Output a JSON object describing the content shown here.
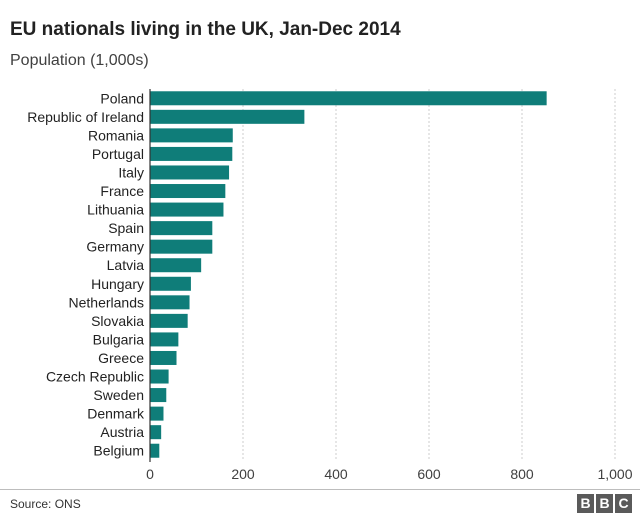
{
  "chart_data": {
    "type": "bar",
    "orientation": "horizontal",
    "title": "EU nationals living in the UK, Jan-Dec 2014",
    "subtitle": "Population (1,000s)",
    "categories": [
      "Poland",
      "Republic of Ireland",
      "Romania",
      "Portugal",
      "Italy",
      "France",
      "Lithuania",
      "Spain",
      "Germany",
      "Latvia",
      "Hungary",
      "Netherlands",
      "Slovakia",
      "Bulgaria",
      "Greece",
      "Czech Republic",
      "Sweden",
      "Denmark",
      "Austria",
      "Belgium"
    ],
    "values": [
      853,
      332,
      178,
      177,
      170,
      162,
      158,
      134,
      134,
      110,
      88,
      85,
      81,
      61,
      57,
      40,
      35,
      29,
      24,
      20
    ],
    "xlim": [
      0,
      1000
    ],
    "xticks": [
      0,
      200,
      400,
      600,
      800,
      1000
    ],
    "xtick_labels": [
      "0",
      "200",
      "400",
      "600",
      "800",
      "1,000"
    ],
    "grid": "vertical dashed",
    "bar_color": "#0f7d79"
  },
  "footer": {
    "source": "Source: ONS",
    "logo_letters": [
      "B",
      "B",
      "C"
    ]
  }
}
